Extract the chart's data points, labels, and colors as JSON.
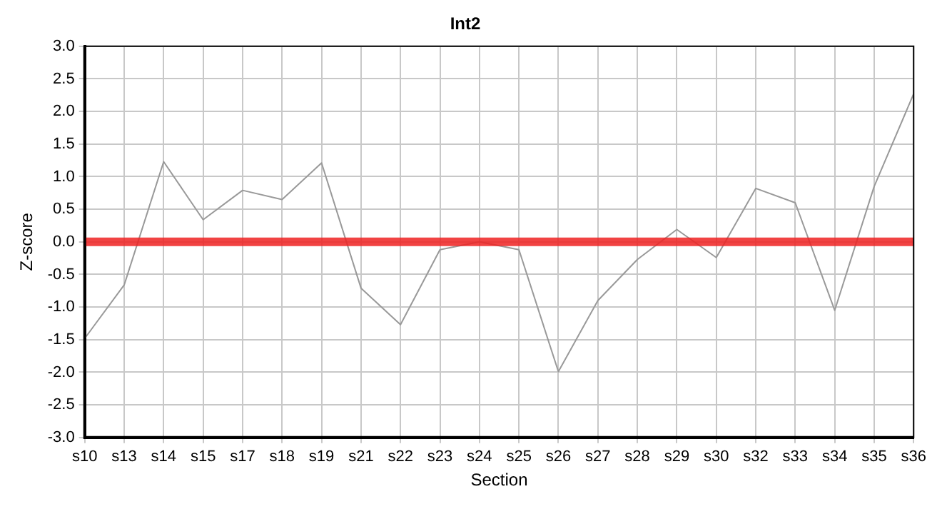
{
  "chart_data": {
    "type": "line",
    "title": "Int2",
    "xlabel": "Section",
    "ylabel": "Z-score",
    "categories": [
      "s10",
      "s13",
      "s14",
      "s15",
      "s17",
      "s18",
      "s19",
      "s21",
      "s22",
      "s23",
      "s24",
      "s25",
      "s26",
      "s27",
      "s28",
      "s29",
      "s30",
      "s32",
      "s33",
      "s34",
      "s35",
      "s36"
    ],
    "series": [
      {
        "color": "#999999",
        "values": [
          -1.48,
          -0.66,
          1.23,
          0.34,
          0.79,
          0.65,
          1.21,
          -0.71,
          -1.27,
          -0.12,
          0.0,
          -0.12,
          -1.99,
          -0.9,
          -0.27,
          0.19,
          -0.24,
          0.82,
          0.6,
          -1.05,
          0.85,
          2.27
        ]
      }
    ],
    "ylim": [
      -3,
      3
    ],
    "yticks": [
      {
        "value": -3,
        "label": "-3.0"
      },
      {
        "value": -2.5,
        "label": "-2.5"
      },
      {
        "value": -2,
        "label": "-2.0"
      },
      {
        "value": -1.5,
        "label": "-1.5"
      },
      {
        "value": -1,
        "label": "-1.0"
      },
      {
        "value": -0.5,
        "label": "-0.5"
      },
      {
        "value": 0,
        "label": "0.0"
      },
      {
        "value": 0.5,
        "label": "0.5"
      },
      {
        "value": 1,
        "label": "1.0"
      },
      {
        "value": 1.5,
        "label": "1.5"
      },
      {
        "value": 2,
        "label": "2.0"
      },
      {
        "value": 2.5,
        "label": "2.5"
      },
      {
        "value": 3,
        "label": "3.0"
      }
    ],
    "ref_lines": [
      {
        "axis": "y",
        "value": 0,
        "color": "#ee2222"
      }
    ],
    "grid": true,
    "legend": false,
    "marker": "none",
    "line_style": "solid"
  }
}
